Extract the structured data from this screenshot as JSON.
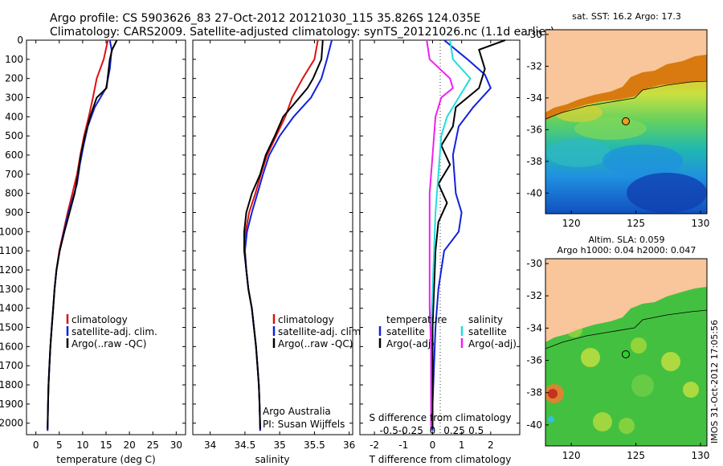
{
  "title_lines": [
    "Argo profile: CS 5903626_83 27-Oct-2012 20121030_115 35.826S 124.035E",
    "Climatology: CARS2009. Satellite-adjusted climatology: synTS_20121026.nc (1.1d earlier)"
  ],
  "colors": {
    "climatology": "#dd1111",
    "satellite": "#1122dd",
    "argo": "#000000",
    "salinity_sat": "#22dddd",
    "salinity_argo": "#ee22ee",
    "land": "#f9c59a"
  },
  "profile_legend": [
    "climatology",
    "satellite-adj. clim.",
    "Argo(..raw -QC)"
  ],
  "diff_legend": {
    "temperature_header": "temperature",
    "salinity_header": "salinity",
    "items": [
      "satellite",
      "Argo(-adj)"
    ]
  },
  "credits": [
    "Argo Australia",
    "PI: Susan Wijffels"
  ],
  "map_titles": {
    "sst": "sat. SST: 16.2 Argo: 17.3",
    "sla_line1": "Altim. SLA: 0.059",
    "sla_line2": "Argo h1000: 0.04 h2000: 0.047"
  },
  "side_note": "IMOS 31-Oct-2012 17:05:56",
  "chart_data": [
    {
      "type": "line",
      "name": "temperature",
      "xlabel": "temperature (deg C)",
      "ylabel": "",
      "xlim": [
        -2,
        32
      ],
      "ylim": [
        2060,
        0
      ],
      "xticks": [
        0,
        5,
        10,
        15,
        20,
        25,
        30
      ],
      "yticks": [
        0,
        100,
        200,
        300,
        400,
        500,
        600,
        700,
        800,
        900,
        1000,
        1100,
        1200,
        1300,
        1400,
        1500,
        1600,
        1700,
        1800,
        1900,
        2000
      ],
      "series": [
        {
          "name": "climatology",
          "color": "#dd1111",
          "points": [
            [
              15.4,
              0
            ],
            [
              14.5,
              100
            ],
            [
              13.0,
              200
            ],
            [
              12.2,
              300
            ],
            [
              11.3,
              400
            ],
            [
              10.3,
              500
            ],
            [
              9.5,
              600
            ],
            [
              8.8,
              700
            ],
            [
              7.8,
              800
            ],
            [
              6.8,
              900
            ],
            [
              5.9,
              1000
            ],
            [
              5.0,
              1100
            ],
            [
              4.4,
              1200
            ],
            [
              4.0,
              1300
            ],
            [
              3.7,
              1400
            ],
            [
              3.4,
              1500
            ],
            [
              3.1,
              1600
            ],
            [
              2.9,
              1700
            ],
            [
              2.7,
              1800
            ],
            [
              2.6,
              1900
            ],
            [
              2.5,
              2040
            ]
          ]
        },
        {
          "name": "satellite-adj. clim.",
          "color": "#1122dd",
          "points": [
            [
              15.8,
              0
            ],
            [
              16.2,
              50
            ],
            [
              15.8,
              150
            ],
            [
              15.0,
              250
            ],
            [
              12.6,
              350
            ],
            [
              11.1,
              450
            ],
            [
              10.2,
              550
            ],
            [
              9.4,
              650
            ],
            [
              8.8,
              750
            ],
            [
              8.2,
              800
            ],
            [
              7.0,
              900
            ],
            [
              6.0,
              1000
            ],
            [
              5.1,
              1100
            ],
            [
              4.4,
              1200
            ],
            [
              4.0,
              1300
            ],
            [
              3.7,
              1400
            ],
            [
              3.4,
              1500
            ],
            [
              3.1,
              1600
            ],
            [
              2.9,
              1700
            ],
            [
              2.7,
              1800
            ],
            [
              2.6,
              1900
            ],
            [
              2.5,
              2040
            ]
          ]
        },
        {
          "name": "Argo(..raw -QC)",
          "color": "#000000",
          "points": [
            [
              17.3,
              0
            ],
            [
              16.3,
              50
            ],
            [
              15.8,
              100
            ],
            [
              15.1,
              250
            ],
            [
              13.0,
              300
            ],
            [
              11.6,
              400
            ],
            [
              10.5,
              500
            ],
            [
              9.6,
              600
            ],
            [
              9.0,
              700
            ],
            [
              8.3,
              800
            ],
            [
              7.2,
              900
            ],
            [
              6.1,
              1000
            ],
            [
              5.1,
              1100
            ],
            [
              4.4,
              1200
            ],
            [
              4.0,
              1300
            ],
            [
              3.7,
              1400
            ],
            [
              3.4,
              1500
            ],
            [
              3.1,
              1600
            ],
            [
              2.9,
              1700
            ],
            [
              2.7,
              1800
            ],
            [
              2.6,
              1900
            ],
            [
              2.5,
              2030
            ]
          ]
        }
      ]
    },
    {
      "type": "line",
      "name": "salinity",
      "xlabel": "salinity",
      "ylabel": "",
      "xlim": [
        33.75,
        36.05
      ],
      "ylim": [
        2060,
        0
      ],
      "xticks": [
        34,
        34.5,
        35,
        35.5,
        36
      ],
      "series": [
        {
          "name": "climatology",
          "color": "#dd1111",
          "points": [
            [
              35.55,
              0
            ],
            [
              35.5,
              100
            ],
            [
              35.33,
              200
            ],
            [
              35.18,
              300
            ],
            [
              35.08,
              400
            ],
            [
              34.95,
              500
            ],
            [
              34.82,
              600
            ],
            [
              34.73,
              700
            ],
            [
              34.65,
              800
            ],
            [
              34.56,
              900
            ],
            [
              34.51,
              1000
            ],
            [
              34.5,
              1100
            ],
            [
              34.52,
              1200
            ],
            [
              34.55,
              1300
            ],
            [
              34.6,
              1400
            ],
            [
              34.63,
              1500
            ],
            [
              34.66,
              1600
            ],
            [
              34.68,
              1700
            ],
            [
              34.7,
              1800
            ],
            [
              34.71,
              1900
            ],
            [
              34.72,
              2040
            ]
          ]
        },
        {
          "name": "satellite-adj. clim.",
          "color": "#1122dd",
          "points": [
            [
              35.75,
              0
            ],
            [
              35.68,
              100
            ],
            [
              35.6,
              200
            ],
            [
              35.45,
              300
            ],
            [
              35.2,
              400
            ],
            [
              35.0,
              500
            ],
            [
              34.85,
              600
            ],
            [
              34.76,
              700
            ],
            [
              34.68,
              800
            ],
            [
              34.6,
              900
            ],
            [
              34.53,
              1000
            ],
            [
              34.5,
              1100
            ],
            [
              34.52,
              1200
            ],
            [
              34.55,
              1300
            ],
            [
              34.6,
              1400
            ],
            [
              34.63,
              1500
            ],
            [
              34.66,
              1600
            ],
            [
              34.68,
              1700
            ],
            [
              34.7,
              1800
            ],
            [
              34.71,
              1900
            ],
            [
              34.72,
              2040
            ]
          ]
        },
        {
          "name": "Argo(..raw -QC)",
          "color": "#000000",
          "points": [
            [
              35.62,
              0
            ],
            [
              35.6,
              100
            ],
            [
              35.48,
              200
            ],
            [
              35.4,
              250
            ],
            [
              35.05,
              400
            ],
            [
              34.93,
              500
            ],
            [
              34.8,
              600
            ],
            [
              34.72,
              700
            ],
            [
              34.6,
              800
            ],
            [
              34.52,
              900
            ],
            [
              34.49,
              1000
            ],
            [
              34.49,
              1100
            ],
            [
              34.52,
              1200
            ],
            [
              34.55,
              1300
            ],
            [
              34.6,
              1400
            ],
            [
              34.63,
              1500
            ],
            [
              34.66,
              1600
            ],
            [
              34.68,
              1700
            ],
            [
              34.7,
              1800
            ],
            [
              34.71,
              1900
            ],
            [
              34.72,
              2030
            ]
          ]
        }
      ]
    },
    {
      "type": "line",
      "name": "difference from climatology",
      "xlabel": "T difference from climatology",
      "xlabel_top": "S difference from climatology",
      "xlim": [
        -2.5,
        3.0
      ],
      "ylim": [
        2060,
        0
      ],
      "xticks": [
        -2,
        -1,
        0,
        1,
        2
      ],
      "s_ticks": [
        {
          "pos": -1.5,
          "label": "-0.5"
        },
        {
          "pos": -0.75,
          "label": "-0.25"
        },
        {
          "pos": 0,
          "label": "0"
        },
        {
          "pos": 0.75,
          "label": "0.25"
        },
        {
          "pos": 1.5,
          "label": "0.5"
        }
      ],
      "series": [
        {
          "name": "temperature satellite",
          "color": "#1122dd",
          "points": [
            [
              0.4,
              0
            ],
            [
              1.2,
              100
            ],
            [
              1.8,
              180
            ],
            [
              2.0,
              250
            ],
            [
              1.4,
              350
            ],
            [
              0.9,
              450
            ],
            [
              0.7,
              600
            ],
            [
              0.8,
              800
            ],
            [
              1.0,
              900
            ],
            [
              0.9,
              1000
            ],
            [
              0.4,
              1100
            ],
            [
              0.2,
              1300
            ],
            [
              0.1,
              1500
            ],
            [
              0.05,
              1700
            ],
            [
              0.0,
              1900
            ],
            [
              0.0,
              2040
            ]
          ]
        },
        {
          "name": "temperature Argo(-adj)",
          "color": "#000000",
          "points": [
            [
              2.5,
              0
            ],
            [
              1.6,
              50
            ],
            [
              1.8,
              150
            ],
            [
              1.6,
              250
            ],
            [
              0.8,
              350
            ],
            [
              0.7,
              450
            ],
            [
              0.3,
              550
            ],
            [
              0.6,
              650
            ],
            [
              0.2,
              750
            ],
            [
              0.5,
              850
            ],
            [
              0.2,
              950
            ],
            [
              0.1,
              1100
            ],
            [
              0.05,
              1300
            ],
            [
              0.0,
              1500
            ],
            [
              0.0,
              1700
            ],
            [
              0.0,
              1900
            ],
            [
              0.0,
              2030
            ]
          ]
        },
        {
          "name": "salinity satellite",
          "color": "#22dddd",
          "points": [
            [
              0.6,
              0
            ],
            [
              0.7,
              100
            ],
            [
              1.3,
              200
            ],
            [
              0.9,
              300
            ],
            [
              0.5,
              400
            ],
            [
              0.3,
              500
            ],
            [
              0.2,
              700
            ],
            [
              0.1,
              900
            ],
            [
              0.05,
              1100
            ],
            [
              0.0,
              1300
            ],
            [
              -0.05,
              1500
            ],
            [
              -0.05,
              1700
            ],
            [
              -0.05,
              1900
            ],
            [
              -0.05,
              2040
            ]
          ]
        },
        {
          "name": "salinity Argo(-adj)",
          "color": "#ee22ee",
          "points": [
            [
              -0.2,
              0
            ],
            [
              -0.1,
              100
            ],
            [
              0.6,
              200
            ],
            [
              0.7,
              250
            ],
            [
              0.3,
              300
            ],
            [
              0.1,
              400
            ],
            [
              0.0,
              600
            ],
            [
              -0.1,
              800
            ],
            [
              -0.1,
              1000
            ],
            [
              -0.1,
              1200
            ],
            [
              -0.1,
              1400
            ],
            [
              -0.05,
              1600
            ],
            [
              -0.05,
              1800
            ],
            [
              -0.05,
              2030
            ]
          ]
        }
      ]
    },
    {
      "type": "heatmap",
      "name": "sat. SST map",
      "xlim": [
        118,
        130.5
      ],
      "ylim": [
        -41.3,
        -29.7
      ],
      "xticks": [
        120,
        125,
        130
      ],
      "yticks": [
        -30,
        -32,
        -34,
        -36,
        -38,
        -40
      ],
      "marker": {
        "lon": 124.035,
        "lat": -35.826,
        "color": "#e8a020"
      }
    },
    {
      "type": "heatmap",
      "name": "Altim. SLA map",
      "xlim": [
        118,
        130.5
      ],
      "ylim": [
        -41.3,
        -29.7
      ],
      "xticks": [
        120,
        125,
        130
      ],
      "yticks": [
        -30,
        -32,
        -34,
        -36,
        -38,
        -40
      ],
      "marker": {
        "lon": 124.035,
        "lat": -35.826,
        "color": "#33cc33"
      }
    }
  ]
}
